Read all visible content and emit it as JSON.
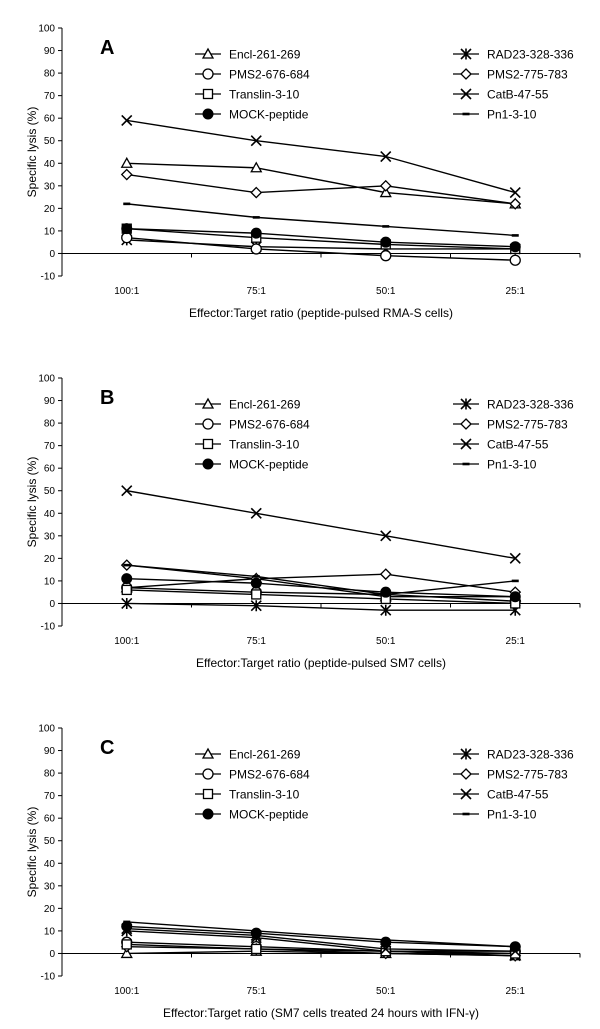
{
  "chart_data": [
    {
      "type": "line",
      "panel_label": "A",
      "categories": [
        "100:1",
        "75:1",
        "50:1",
        "25:1"
      ],
      "xlabel": "Effector:Target ratio (peptide-pulsed RMA-S cells)",
      "ylabel": "Specific lysis (%)",
      "ylim": [
        -10,
        100
      ],
      "yticks": [
        -10,
        0,
        10,
        20,
        30,
        40,
        50,
        60,
        70,
        80,
        90,
        100
      ],
      "grid": false,
      "legend_position": "top",
      "series": [
        {
          "name": "Encl-261-269",
          "marker": "triangle",
          "values": [
            40,
            38,
            27,
            22
          ]
        },
        {
          "name": "RAD23-328-336",
          "marker": "asterisk",
          "values": [
            6,
            3,
            2,
            2
          ]
        },
        {
          "name": "PMS2-676-684",
          "marker": "circle-open",
          "values": [
            7,
            2,
            -1,
            -3
          ]
        },
        {
          "name": "PMS2-775-783",
          "marker": "diamond",
          "values": [
            35,
            27,
            30,
            22
          ]
        },
        {
          "name": "Translin-3-10",
          "marker": "square",
          "values": [
            11,
            7,
            4,
            2
          ]
        },
        {
          "name": "CatB-47-55",
          "marker": "x",
          "values": [
            59,
            50,
            43,
            27
          ]
        },
        {
          "name": "MOCK-peptide",
          "marker": "circle-filled",
          "values": [
            11,
            9,
            5,
            3
          ]
        },
        {
          "name": "Pn1-3-10",
          "marker": "dash",
          "values": [
            22,
            16,
            12,
            8
          ]
        }
      ]
    },
    {
      "type": "line",
      "panel_label": "B",
      "categories": [
        "100:1",
        "75:1",
        "50:1",
        "25:1"
      ],
      "xlabel": "Effector:Target ratio (peptide-pulsed SM7 cells)",
      "ylabel": "Specific lysis (%)",
      "ylim": [
        -10,
        100
      ],
      "yticks": [
        -10,
        0,
        10,
        20,
        30,
        40,
        50,
        60,
        70,
        80,
        90,
        100
      ],
      "grid": false,
      "legend_position": "top",
      "series": [
        {
          "name": "Encl-261-269",
          "marker": "triangle",
          "values": [
            7,
            11,
            3,
            3
          ]
        },
        {
          "name": "RAD23-328-336",
          "marker": "asterisk",
          "values": [
            0,
            -1,
            -3,
            -3
          ]
        },
        {
          "name": "PMS2-676-684",
          "marker": "circle-open",
          "values": [
            7,
            5,
            4,
            1
          ]
        },
        {
          "name": "PMS2-775-783",
          "marker": "diamond",
          "values": [
            17,
            11,
            13,
            5
          ]
        },
        {
          "name": "Translin-3-10",
          "marker": "square",
          "values": [
            6,
            4,
            2,
            0
          ]
        },
        {
          "name": "CatB-47-55",
          "marker": "x",
          "values": [
            50,
            40,
            30,
            20
          ]
        },
        {
          "name": "MOCK-peptide",
          "marker": "circle-filled",
          "values": [
            11,
            9,
            5,
            3
          ]
        },
        {
          "name": "Pn1-3-10",
          "marker": "dash",
          "values": [
            17,
            12,
            4,
            10
          ]
        }
      ]
    },
    {
      "type": "line",
      "panel_label": "C",
      "categories": [
        "100:1",
        "75:1",
        "50:1",
        "25:1"
      ],
      "xlabel": "Effector:Target ratio (SM7 cells treated 24 hours with IFN-γ)",
      "ylabel": "Specific lysis (%)",
      "ylim": [
        -10,
        100
      ],
      "yticks": [
        -10,
        0,
        10,
        20,
        30,
        40,
        50,
        60,
        70,
        80,
        90,
        100
      ],
      "grid": false,
      "legend_position": "top",
      "series": [
        {
          "name": "Encl-261-269",
          "marker": "triangle",
          "values": [
            0,
            1,
            0,
            -1
          ]
        },
        {
          "name": "RAD23-328-336",
          "marker": "asterisk",
          "values": [
            10,
            7,
            1,
            -1
          ]
        },
        {
          "name": "PMS2-676-684",
          "marker": "circle-open",
          "values": [
            5,
            3,
            1,
            1
          ]
        },
        {
          "name": "PMS2-775-783",
          "marker": "diamond",
          "values": [
            3,
            2,
            0,
            -1
          ]
        },
        {
          "name": "Translin-3-10",
          "marker": "square",
          "values": [
            4,
            2,
            1,
            0
          ]
        },
        {
          "name": "CatB-47-55",
          "marker": "x",
          "values": [
            11,
            8,
            2,
            1
          ]
        },
        {
          "name": "MOCK-peptide",
          "marker": "circle-filled",
          "values": [
            12,
            9,
            5,
            3
          ]
        },
        {
          "name": "Pn1-3-10",
          "marker": "dash",
          "values": [
            14,
            10,
            6,
            3
          ]
        }
      ]
    }
  ]
}
